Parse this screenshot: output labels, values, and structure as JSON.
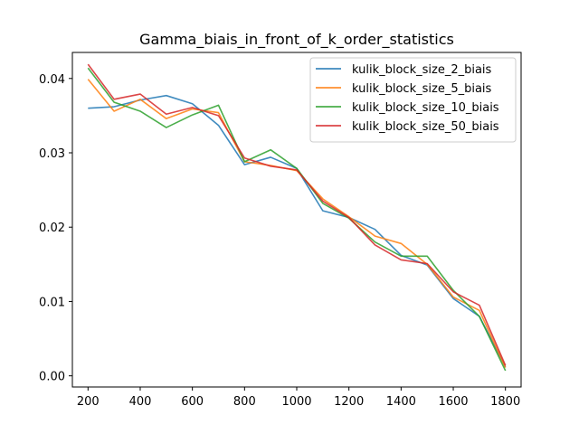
{
  "chart_data": {
    "type": "line",
    "title": "Gamma_biais_in_front_of_k_order_statistics",
    "xlabel": "",
    "ylabel": "",
    "x": [
      200,
      300,
      400,
      500,
      600,
      700,
      800,
      900,
      1000,
      1100,
      1200,
      1300,
      1400,
      1500,
      1600,
      1700,
      1800
    ],
    "xlim": [
      140,
      1860
    ],
    "ylim": [
      -0.0015,
      0.0435
    ],
    "xticks": [
      "200",
      "400",
      "600",
      "800",
      "1000",
      "1200",
      "1400",
      "1600",
      "1800"
    ],
    "yticks": [
      "0.00",
      "0.01",
      "0.02",
      "0.03",
      "0.04"
    ],
    "grid": false,
    "legend_position": "top-right",
    "series": [
      {
        "name": "kulik_block_size_2_biais",
        "color": "#1f77b4",
        "values": [
          0.036,
          0.0362,
          0.0371,
          0.0377,
          0.0366,
          0.0337,
          0.0284,
          0.0294,
          0.0279,
          0.0222,
          0.0213,
          0.0197,
          0.0162,
          0.0149,
          0.0104,
          0.008,
          0.0012
        ]
      },
      {
        "name": "kulik_block_size_5_biais",
        "color": "#ff7f0e",
        "values": [
          0.0399,
          0.0356,
          0.0372,
          0.0346,
          0.0359,
          0.0354,
          0.0288,
          0.0283,
          0.0276,
          0.0238,
          0.0214,
          0.0188,
          0.0178,
          0.015,
          0.0106,
          0.0088,
          0.0011
        ]
      },
      {
        "name": "kulik_block_size_10_biais",
        "color": "#2ca02c",
        "values": [
          0.0414,
          0.0368,
          0.0356,
          0.0334,
          0.0351,
          0.0364,
          0.0288,
          0.0304,
          0.0279,
          0.0232,
          0.0212,
          0.018,
          0.0161,
          0.0161,
          0.0115,
          0.008,
          0.0007
        ]
      },
      {
        "name": "kulik_block_size_50_biais",
        "color": "#d62728",
        "values": [
          0.0419,
          0.0372,
          0.0379,
          0.0352,
          0.0361,
          0.035,
          0.0293,
          0.0282,
          0.0277,
          0.0235,
          0.0213,
          0.0176,
          0.0156,
          0.0151,
          0.0113,
          0.0095,
          0.0014
        ]
      }
    ]
  }
}
